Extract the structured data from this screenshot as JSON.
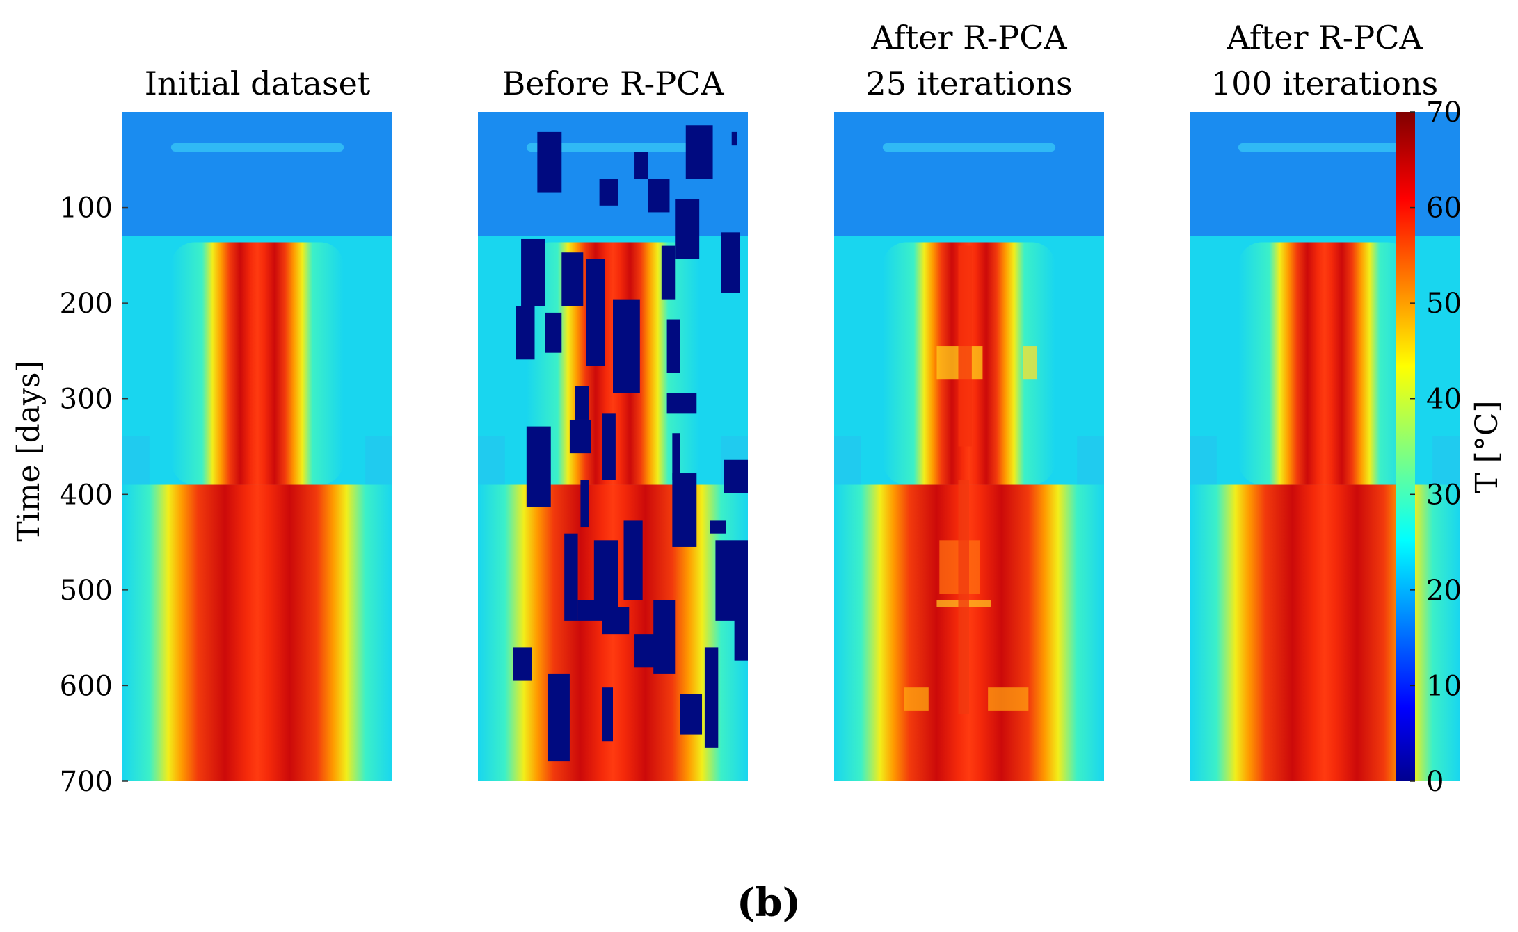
{
  "figure_label": "(b)",
  "chart_data": {
    "type": "heatmap",
    "panels": [
      {
        "title_lines": [
          "Initial dataset"
        ],
        "kind": "original"
      },
      {
        "title_lines": [
          "Before R-PCA"
        ],
        "kind": "corrupted"
      },
      {
        "title_lines": [
          "After R-PCA",
          "25 iterations"
        ],
        "kind": "partial"
      },
      {
        "title_lines": [
          "After R-PCA",
          "100 iterations"
        ],
        "kind": "recovered"
      }
    ],
    "ylabel": "Time [days]",
    "ylim": [
      0,
      700
    ],
    "yticks": [
      100,
      200,
      300,
      400,
      500,
      600,
      700
    ],
    "colorbar": {
      "label": "T [°C]",
      "label_symbol": "T",
      "label_unit": "[°C]",
      "range": [
        0,
        70
      ],
      "ticks": [
        0,
        10,
        20,
        30,
        40,
        50,
        60,
        70
      ],
      "colormap": "jet"
    },
    "colors": {
      "top_band": "#1a8cf0",
      "ambient": "#19d6ef",
      "core": "#cc0a0a",
      "missing": "#000a80"
    },
    "regions": {
      "top_band_end_day": 130,
      "upper_phase_end_day": 390,
      "hot_core_start_day": 145
    }
  }
}
